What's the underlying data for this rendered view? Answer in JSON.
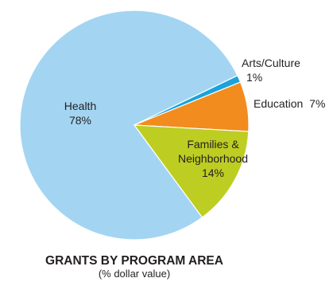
{
  "chart_data": {
    "type": "pie",
    "title": "GRANTS BY PROGRAM AREA",
    "subtitle": "(% dollar value)",
    "slices": [
      {
        "name": "Health",
        "value": 78,
        "display": "78%",
        "color": "#a3d5f2"
      },
      {
        "name": "Arts/Culture",
        "value": 1,
        "display": "1%",
        "color": "#1aa3dc"
      },
      {
        "name": "Education",
        "value": 7,
        "display": "7%",
        "color": "#f28c1e"
      },
      {
        "name": "Families & Neighborhood",
        "display_lines": [
          "Families &",
          "Neighborhood"
        ],
        "value": 14,
        "display": "14%",
        "color": "#bdcd22"
      }
    ],
    "legend": "none",
    "grid": false
  }
}
